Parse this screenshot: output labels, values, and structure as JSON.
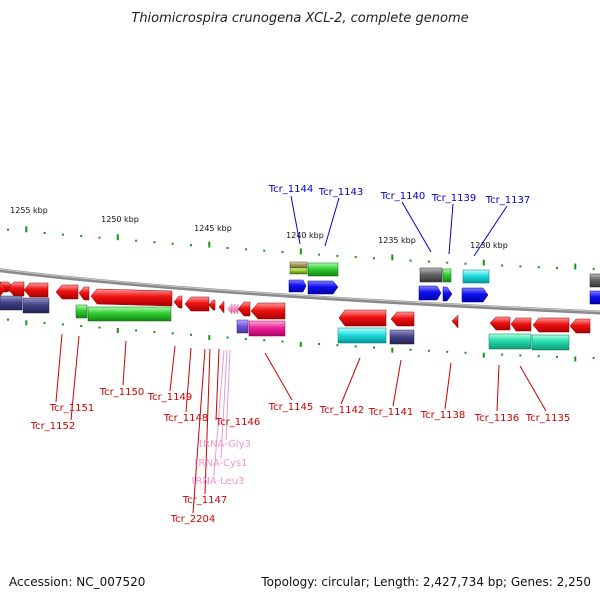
{
  "title": "Thiomicrospira crunogena XCL-2, complete genome",
  "footer": {
    "accession": "Accession: NC_007520",
    "topology": "Topology: circular; Length: 2,427,734 bp; Genes: 2,250"
  },
  "scale_labels": [
    "1255 kbp",
    "1250 kbp",
    "1245 kbp",
    "1240 kbp",
    "1235 kbp",
    "1230 kbp"
  ],
  "forward_labels": [
    "Tcr_1144",
    "Tcr_1143",
    "Tcr_1140",
    "Tcr_1139",
    "Tcr_1137"
  ],
  "reverse_labels": [
    "Tcr_1151",
    "Tcr_1152",
    "Tcr_1150",
    "Tcr_1149",
    "Tcr_1148",
    "Tcr_1147",
    "Tcr_2204",
    "Tcr_1146",
    "Tcr_1145",
    "Tcr_1142",
    "Tcr_1141",
    "Tcr_1138",
    "Tcr_1136",
    "Tcr_1135"
  ],
  "rna_labels": [
    "tRNA-Gly3",
    "tRNA-Cys1",
    "tRNA-Leu3"
  ],
  "colors": {
    "forward_label": "#0000cc",
    "reverse_label": "#cc0000",
    "rna_label": "#ee99cc",
    "tick": "#119911",
    "red_gene": "#ee1111",
    "blue_gene": "#1111ee",
    "green_gene": "#33cc33",
    "cyan_gene": "#22dddd",
    "navy_gene": "#444488",
    "magenta_gene": "#ee2299",
    "lime_gene": "#99cc33",
    "gray_gene": "#666666",
    "sea_green_gene": "#22ddaa"
  }
}
